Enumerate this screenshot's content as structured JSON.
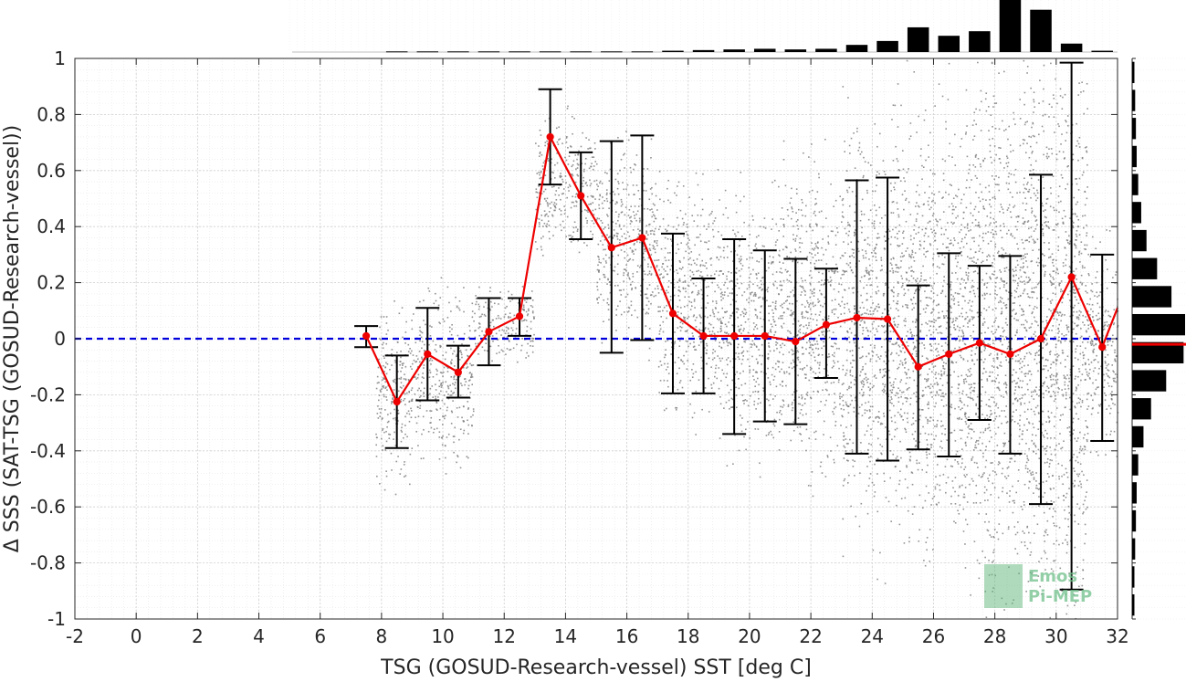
{
  "chart_data": {
    "type": "scatter",
    "xlabel": "TSG (GOSUD-Research-vessel) SST [deg C]",
    "ylabel": "Δ SSS (SAT-TSG (GOSUD-Research-vessel))",
    "xlim": [
      -2,
      32
    ],
    "ylim": [
      -1,
      1
    ],
    "xticks": [
      -2,
      0,
      2,
      4,
      6,
      8,
      10,
      12,
      14,
      16,
      18,
      20,
      22,
      24,
      26,
      28,
      30,
      32
    ],
    "yticks": [
      -1,
      -0.8,
      -0.6,
      -0.4,
      -0.2,
      0,
      0.2,
      0.4,
      0.6,
      0.8,
      1
    ],
    "ytick_labels": [
      "-1",
      "-0.8",
      "-0.6",
      "-0.4",
      "-0.2",
      "0",
      "0.2",
      "0.4",
      "0.6",
      "0.8",
      "1"
    ],
    "grid": true,
    "reference_line": {
      "y": 0,
      "style": "dashed",
      "color": "#0000dd"
    },
    "binned_series": {
      "color": "#ee0000",
      "x": [
        7.5,
        8.5,
        9.5,
        10.5,
        11.5,
        12.5,
        13.5,
        14.5,
        15.5,
        16.5,
        17.5,
        18.5,
        19.5,
        20.5,
        21.5,
        22.5,
        23.5,
        24.5,
        25.5,
        26.5,
        27.5,
        28.5,
        29.5,
        30.5,
        31.5
      ],
      "mean": [
        0.01,
        -0.225,
        -0.055,
        -0.12,
        0.025,
        0.08,
        0.72,
        0.51,
        0.325,
        0.36,
        0.09,
        0.01,
        0.01,
        0.01,
        -0.01,
        0.05,
        0.075,
        0.07,
        -0.1,
        -0.055,
        -0.015,
        -0.055,
        0.0,
        0.22,
        -0.03
      ],
      "err_low": [
        -0.03,
        -0.39,
        -0.22,
        -0.21,
        -0.095,
        0.01,
        0.55,
        0.355,
        -0.05,
        -0.005,
        -0.195,
        -0.195,
        -0.34,
        -0.295,
        -0.305,
        -0.14,
        -0.41,
        -0.435,
        -0.395,
        -0.42,
        -0.29,
        -0.41,
        -0.59,
        -0.895,
        -0.365
      ],
      "err_high": [
        0.045,
        -0.06,
        0.11,
        -0.025,
        0.145,
        0.145,
        0.89,
        0.665,
        0.705,
        0.725,
        0.375,
        0.215,
        0.355,
        0.315,
        0.285,
        0.25,
        0.565,
        0.575,
        0.19,
        0.305,
        0.26,
        0.295,
        0.585,
        0.985,
        0.3
      ],
      "line_end": {
        "x": 32,
        "y": 0.11
      }
    },
    "scatter_cloud": {
      "color": "#808080",
      "bins": [
        {
          "x": [
            7.8,
            9.0
          ],
          "y": [
            -0.5,
            0.1
          ]
        },
        {
          "x": [
            9.0,
            11.0
          ],
          "y": [
            -0.42,
            0.16
          ]
        },
        {
          "x": [
            11.0,
            13.0
          ],
          "y": [
            -0.1,
            0.18
          ]
        },
        {
          "x": [
            13.0,
            15.0
          ],
          "y": [
            0.3,
            0.78
          ]
        },
        {
          "x": [
            15.0,
            17.0
          ],
          "y": [
            0.0,
            0.7
          ]
        },
        {
          "x": [
            17.0,
            19.0
          ],
          "y": [
            -0.25,
            0.55
          ]
        },
        {
          "x": [
            19.0,
            21.0
          ],
          "y": [
            -0.4,
            0.5
          ]
        },
        {
          "x": [
            21.0,
            23.0
          ],
          "y": [
            -0.45,
            0.6
          ]
        },
        {
          "x": [
            23.0,
            25.0
          ],
          "y": [
            -0.65,
            0.75
          ]
        },
        {
          "x": [
            25.0,
            27.0
          ],
          "y": [
            -0.7,
            0.8
          ]
        },
        {
          "x": [
            27.0,
            29.0
          ],
          "y": [
            -0.85,
            0.95
          ]
        },
        {
          "x": [
            29.0,
            31.0
          ],
          "y": [
            -0.95,
            1.0
          ]
        },
        {
          "x": [
            31.0,
            32.0
          ],
          "y": [
            -0.4,
            0.35
          ]
        }
      ]
    },
    "histogram_top": {
      "centers": [
        8.5,
        9.5,
        10.5,
        11.5,
        12.5,
        13.5,
        14.5,
        15.5,
        16.5,
        17.5,
        18.5,
        19.5,
        20.5,
        21.5,
        22.5,
        23.5,
        24.5,
        25.5,
        26.5,
        27.5,
        28.5,
        29.5,
        30.5,
        31.5
      ],
      "counts": [
        1,
        1,
        1,
        1,
        1,
        1,
        1,
        1,
        1,
        2,
        3,
        4,
        5,
        4,
        5,
        11,
        17,
        38,
        25,
        32,
        80,
        65,
        13,
        2
      ]
    },
    "histogram_right": {
      "centers": [
        0.95,
        0.85,
        0.75,
        0.65,
        0.55,
        0.45,
        0.35,
        0.25,
        0.15,
        0.05,
        -0.05,
        -0.15,
        -0.25,
        -0.35,
        -0.45,
        -0.55,
        -0.65,
        -0.75,
        -0.85,
        -0.95
      ],
      "counts": [
        3,
        4,
        5,
        6,
        8,
        12,
        19,
        33,
        52,
        70,
        68,
        45,
        25,
        15,
        8,
        6,
        5,
        4,
        3,
        3
      ],
      "mean": -0.02,
      "mean_color": "#ee0000"
    },
    "watermark": [
      "Emos",
      "Pi-MEP"
    ]
  }
}
